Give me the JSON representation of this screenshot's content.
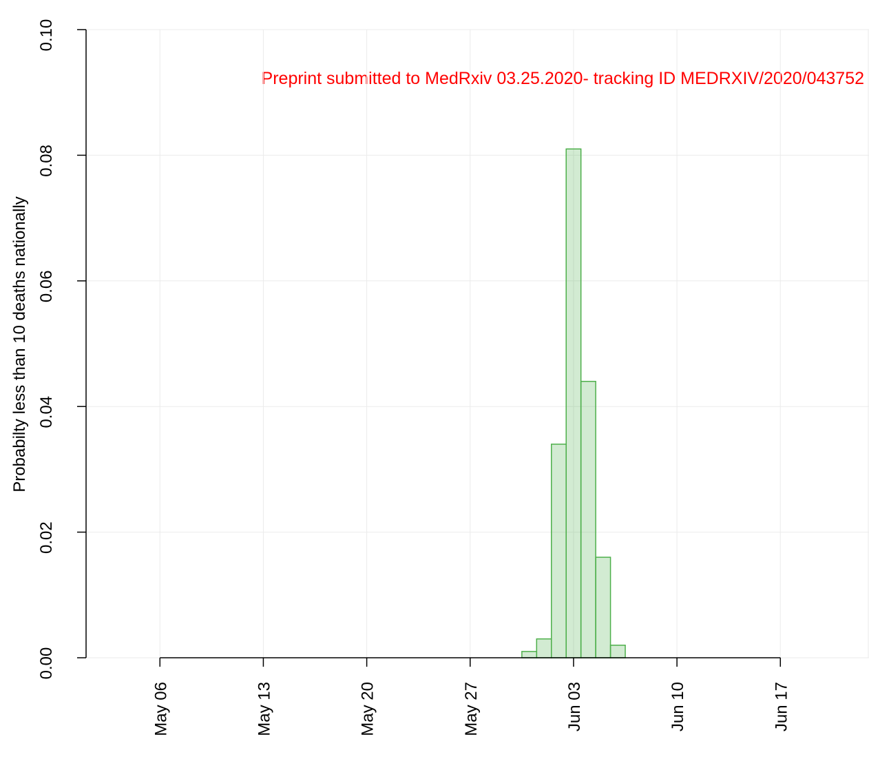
{
  "chart_data": {
    "type": "histogram",
    "ylabel": "Probabilty less than 10 deaths nationally",
    "annotation": "Preprint submitted to MedRxiv 03.25.2020- tracking ID MEDRXIV/2020/043752",
    "x": [
      "May 31",
      "Jun 01",
      "Jun 02",
      "Jun 03",
      "Jun 04",
      "Jun 05",
      "Jun 06"
    ],
    "values": [
      0.001,
      0.003,
      0.034,
      0.081,
      0.044,
      0.016,
      0.002
    ],
    "color": "#4daf4a",
    "xlim": [
      "May 01",
      "Jun 23"
    ],
    "xticks": [
      "May 06",
      "May 13",
      "May 20",
      "May 27",
      "Jun 03",
      "Jun 10",
      "Jun 17"
    ],
    "ylim": [
      0,
      0.1
    ],
    "yticks": [
      {
        "value": 0,
        "label": "0.00"
      },
      0.02,
      0.04,
      0.06,
      0.08,
      {
        "value": 0.1,
        "label": "0.10"
      }
    ],
    "grid": true
  }
}
